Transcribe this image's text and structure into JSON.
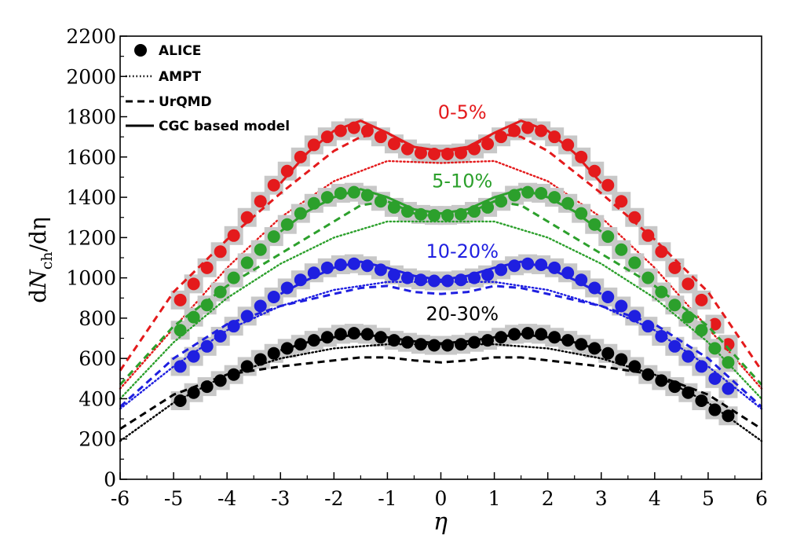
{
  "chart_data": {
    "type": "scatter",
    "title": "",
    "xlabel": "η",
    "ylabel": "dN_ch/dη",
    "ylabel_parts": {
      "d": "d",
      "N": "N",
      "sub": "ch",
      "rest": "/dη"
    },
    "xlim": [
      -6,
      6
    ],
    "ylim": [
      0,
      2200
    ],
    "xticks": [
      "-6",
      "-5",
      "-4",
      "-3",
      "-2",
      "-1",
      "0",
      "1",
      "2",
      "3",
      "4",
      "5",
      "6"
    ],
    "yticks": [
      "0",
      "200",
      "400",
      "600",
      "800",
      "1000",
      "1200",
      "1400",
      "1600",
      "1800",
      "2000",
      "2200"
    ],
    "grid": false,
    "legend": {
      "placement": "top-left",
      "entries": [
        {
          "label": "ALICE",
          "style": "marker"
        },
        {
          "label": "AMPT",
          "style": "dotted"
        },
        {
          "label": "UrQMD",
          "style": "dashed"
        },
        {
          "label": "CGC based model",
          "style": "solid"
        }
      ]
    },
    "series": [
      {
        "name": "0-5%",
        "color": "#e41a1c",
        "label_eta": 0.4,
        "label_value": 1790,
        "alice": {
          "x": [
            -4.875,
            -4.625,
            -4.375,
            -4.125,
            -3.875,
            -3.625,
            -3.375,
            -3.125,
            -2.875,
            -2.625,
            -2.375,
            -2.125,
            -1.875,
            -1.625,
            -1.375,
            -1.125,
            -0.875,
            -0.625,
            -0.375,
            -0.125,
            0.125,
            0.375,
            0.625,
            0.875,
            1.125,
            1.375,
            1.625,
            1.875,
            2.125,
            2.375,
            2.625,
            2.875,
            3.125,
            3.375,
            3.625,
            3.875,
            4.125,
            4.375,
            4.625,
            4.875,
            5.125,
            5.375
          ],
          "y": [
            890,
            970,
            1050,
            1130,
            1210,
            1300,
            1380,
            1460,
            1530,
            1600,
            1660,
            1700,
            1730,
            1745,
            1730,
            1700,
            1665,
            1640,
            1620,
            1615,
            1615,
            1620,
            1640,
            1665,
            1700,
            1730,
            1745,
            1730,
            1700,
            1660,
            1600,
            1530,
            1460,
            1380,
            1300,
            1210,
            1130,
            1050,
            970,
            890,
            770,
            670
          ]
        },
        "ampt": {
          "x": [
            -6,
            -5,
            -4,
            -3,
            -2,
            -1,
            0,
            1,
            2,
            3,
            4,
            5,
            6
          ],
          "y": [
            450,
            750,
            1050,
            1300,
            1480,
            1580,
            1570,
            1580,
            1480,
            1300,
            1050,
            750,
            450
          ]
        },
        "urqmd": {
          "x": [
            -6,
            -5,
            -4,
            -3,
            -2,
            -1.5,
            -1,
            -0.5,
            0,
            0.5,
            1,
            1.5,
            2,
            3,
            4,
            5,
            6
          ],
          "y": [
            540,
            930,
            1190,
            1420,
            1630,
            1700,
            1720,
            1640,
            1630,
            1640,
            1720,
            1700,
            1630,
            1420,
            1190,
            930,
            540
          ]
        },
        "cgc": {
          "x": [
            -3,
            -2.5,
            -2,
            -1.5,
            -1,
            -0.5,
            0,
            0.5,
            1,
            1.5,
            2,
            2.5,
            3
          ],
          "y": [
            1470,
            1620,
            1730,
            1780,
            1720,
            1650,
            1630,
            1650,
            1720,
            1780,
            1730,
            1620,
            1470
          ]
        }
      },
      {
        "name": "5-10%",
        "color": "#2ca02c",
        "label_eta": 0.4,
        "label_value": 1450,
        "alice": {
          "x": [
            -4.875,
            -4.625,
            -4.375,
            -4.125,
            -3.875,
            -3.625,
            -3.375,
            -3.125,
            -2.875,
            -2.625,
            -2.375,
            -2.125,
            -1.875,
            -1.625,
            -1.375,
            -1.125,
            -0.875,
            -0.625,
            -0.375,
            -0.125,
            0.125,
            0.375,
            0.625,
            0.875,
            1.125,
            1.375,
            1.625,
            1.875,
            2.125,
            2.375,
            2.625,
            2.875,
            3.125,
            3.375,
            3.625,
            3.875,
            4.125,
            4.375,
            4.625,
            4.875,
            5.125,
            5.375
          ],
          "y": [
            740,
            805,
            865,
            930,
            1000,
            1075,
            1140,
            1205,
            1265,
            1320,
            1370,
            1400,
            1420,
            1425,
            1410,
            1380,
            1350,
            1330,
            1315,
            1310,
            1310,
            1315,
            1330,
            1350,
            1380,
            1410,
            1425,
            1420,
            1400,
            1370,
            1320,
            1265,
            1205,
            1140,
            1075,
            1000,
            930,
            865,
            805,
            740,
            650,
            580
          ]
        },
        "ampt": {
          "x": [
            -6,
            -5,
            -4,
            -3,
            -2,
            -1,
            0,
            1,
            2,
            3,
            4,
            5,
            6
          ],
          "y": [
            400,
            680,
            900,
            1070,
            1200,
            1280,
            1280,
            1280,
            1200,
            1070,
            900,
            680,
            400
          ]
        },
        "urqmd": {
          "x": [
            -6,
            -5,
            -4,
            -3,
            -2,
            -1.5,
            -1,
            -0.5,
            0,
            0.5,
            1,
            1.5,
            2,
            3,
            4,
            5,
            6
          ],
          "y": [
            470,
            760,
            960,
            1120,
            1280,
            1360,
            1380,
            1320,
            1300,
            1320,
            1380,
            1360,
            1280,
            1120,
            960,
            760,
            470
          ]
        },
        "cgc": {
          "x": [
            -3,
            -2.5,
            -2,
            -1.5,
            -1,
            -0.5,
            0,
            0.5,
            1,
            1.5,
            2,
            2.5,
            3
          ],
          "y": [
            1230,
            1330,
            1400,
            1440,
            1400,
            1340,
            1320,
            1340,
            1400,
            1440,
            1400,
            1330,
            1230
          ]
        }
      },
      {
        "name": "10-20%",
        "color": "#1f1fe0",
        "label_eta": 0.4,
        "label_value": 1100,
        "alice": {
          "x": [
            -4.875,
            -4.625,
            -4.375,
            -4.125,
            -3.875,
            -3.625,
            -3.375,
            -3.125,
            -2.875,
            -2.625,
            -2.375,
            -2.125,
            -1.875,
            -1.625,
            -1.375,
            -1.125,
            -0.875,
            -0.625,
            -0.375,
            -0.125,
            0.125,
            0.375,
            0.625,
            0.875,
            1.125,
            1.375,
            1.625,
            1.875,
            2.125,
            2.375,
            2.625,
            2.875,
            3.125,
            3.375,
            3.625,
            3.875,
            4.125,
            4.375,
            4.625,
            4.875,
            5.125,
            5.375
          ],
          "y": [
            560,
            610,
            660,
            710,
            760,
            810,
            860,
            905,
            950,
            990,
            1025,
            1050,
            1065,
            1070,
            1060,
            1040,
            1015,
            1000,
            990,
            985,
            985,
            990,
            1000,
            1015,
            1040,
            1060,
            1070,
            1065,
            1050,
            1025,
            990,
            950,
            905,
            860,
            810,
            760,
            710,
            660,
            610,
            560,
            500,
            450
          ]
        },
        "ampt": {
          "x": [
            -6,
            -5,
            -4,
            -3,
            -2,
            -1,
            0,
            1,
            2,
            3,
            4,
            5,
            6
          ],
          "y": [
            350,
            560,
            740,
            860,
            940,
            980,
            980,
            980,
            940,
            860,
            740,
            560,
            350
          ]
        },
        "urqmd": {
          "x": [
            -6,
            -5,
            -4,
            -3,
            -2,
            -1.5,
            -1,
            -0.5,
            0,
            0.5,
            1,
            1.5,
            2,
            3,
            4,
            5,
            6
          ],
          "y": [
            360,
            600,
            770,
            860,
            920,
            950,
            960,
            930,
            920,
            930,
            960,
            950,
            920,
            860,
            770,
            600,
            360
          ]
        },
        "cgc": {
          "x": [
            -3,
            -2.5,
            -2,
            -1.5,
            -1,
            -0.5,
            0,
            0.5,
            1,
            1.5,
            2,
            2.5,
            3
          ],
          "y": [
            920,
            990,
            1050,
            1080,
            1050,
            1010,
            990,
            1010,
            1050,
            1080,
            1050,
            990,
            920
          ]
        }
      },
      {
        "name": "20-30%",
        "color": "#000000",
        "label_eta": 0.4,
        "label_value": 790,
        "alice": {
          "x": [
            -4.875,
            -4.625,
            -4.375,
            -4.125,
            -3.875,
            -3.625,
            -3.375,
            -3.125,
            -2.875,
            -2.625,
            -2.375,
            -2.125,
            -1.875,
            -1.625,
            -1.375,
            -1.125,
            -0.875,
            -0.625,
            -0.375,
            -0.125,
            0.125,
            0.375,
            0.625,
            0.875,
            1.125,
            1.375,
            1.625,
            1.875,
            2.125,
            2.375,
            2.625,
            2.875,
            3.125,
            3.375,
            3.625,
            3.875,
            4.125,
            4.375,
            4.625,
            4.875,
            5.125,
            5.375
          ],
          "y": [
            390,
            430,
            460,
            490,
            520,
            560,
            595,
            625,
            650,
            670,
            690,
            705,
            720,
            725,
            720,
            705,
            690,
            680,
            670,
            665,
            665,
            670,
            680,
            690,
            705,
            720,
            725,
            720,
            705,
            690,
            670,
            650,
            625,
            595,
            560,
            520,
            490,
            460,
            430,
            390,
            345,
            315
          ]
        },
        "ampt": {
          "x": [
            -6,
            -5,
            -4,
            -3,
            -2,
            -1,
            0,
            1,
            2,
            3,
            4,
            5,
            6
          ],
          "y": [
            190,
            380,
            520,
            600,
            650,
            670,
            670,
            670,
            650,
            600,
            520,
            380,
            190
          ]
        },
        "urqmd": {
          "x": [
            -6,
            -5,
            -4,
            -3,
            -2,
            -1.5,
            -1,
            -0.5,
            0,
            0.5,
            1,
            1.5,
            2,
            3,
            4,
            5,
            6
          ],
          "y": [
            250,
            420,
            520,
            560,
            590,
            605,
            605,
            590,
            580,
            590,
            605,
            605,
            590,
            560,
            520,
            420,
            250
          ]
        },
        "cgc": {
          "x": [
            -3,
            -2.5,
            -2,
            -1.5,
            -1,
            -0.5,
            0,
            0.5,
            1,
            1.5,
            2,
            2.5,
            3
          ],
          "y": [
            640,
            680,
            705,
            720,
            705,
            685,
            675,
            685,
            705,
            720,
            705,
            680,
            640
          ]
        }
      }
    ]
  }
}
